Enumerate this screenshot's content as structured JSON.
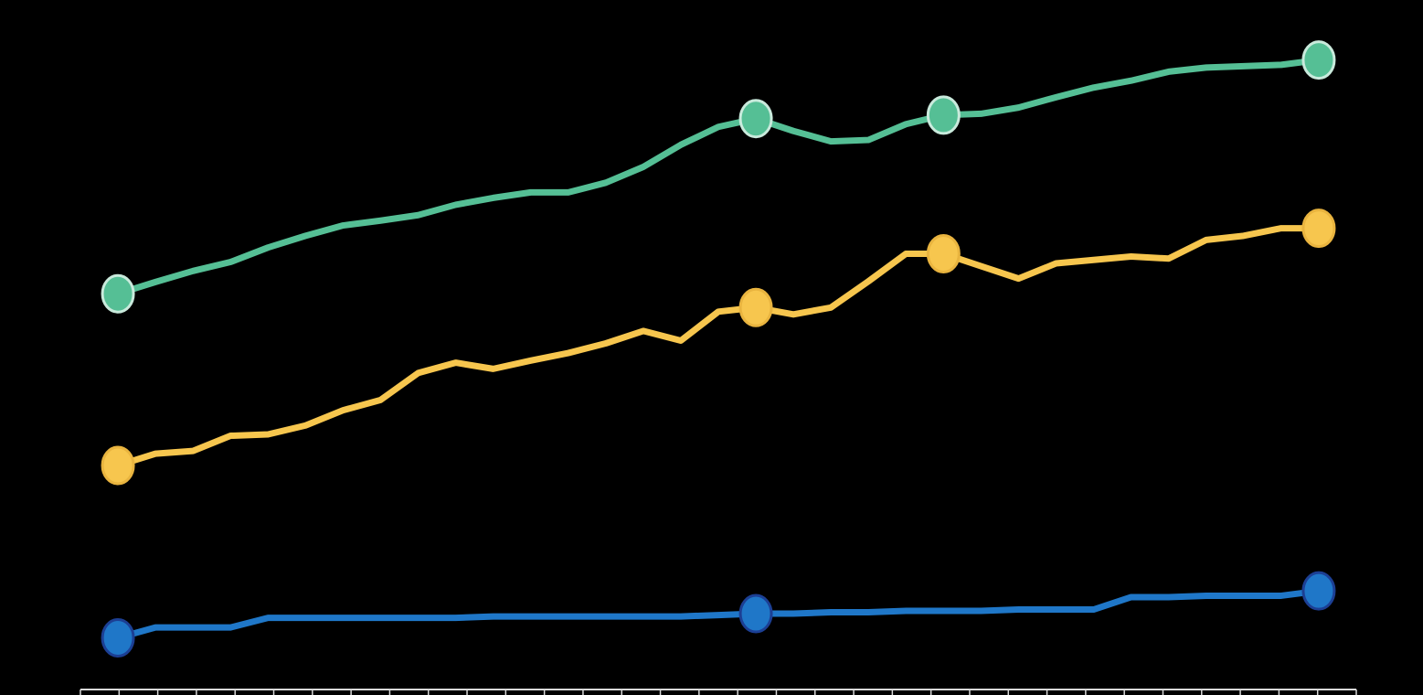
{
  "background": "#000000",
  "chart_data": {
    "type": "line",
    "title": "",
    "xlabel": "",
    "ylabel": "",
    "x": [
      0,
      1,
      2,
      3,
      4,
      5,
      6,
      7,
      8,
      9,
      10,
      11,
      12,
      13,
      14,
      15,
      16,
      17,
      18,
      19,
      20,
      21,
      22,
      23,
      24,
      25,
      26,
      27,
      28,
      29,
      30,
      31,
      32
    ],
    "xlim": [
      -1,
      33
    ],
    "ylim": [
      0,
      100
    ],
    "grid": false,
    "legend": "none",
    "axis_color": "#d9d9d9",
    "series": [
      {
        "color": "#55bf95",
        "marker_fill": "#55bf95",
        "marker_stroke": "#c9eadc",
        "values": [
          57.4,
          59.1,
          60.7,
          62.0,
          64.1,
          65.8,
          67.3,
          68.0,
          68.8,
          70.3,
          71.3,
          72.1,
          72.1,
          73.5,
          75.8,
          79.0,
          81.6,
          82.8,
          81.0,
          79.5,
          79.7,
          82.0,
          83.3,
          83.5,
          84.4,
          85.9,
          87.3,
          88.3,
          89.6,
          90.2,
          90.4,
          90.6,
          91.3
        ],
        "marker_indices": [
          0,
          17,
          22,
          32
        ]
      },
      {
        "color": "#f7c64e",
        "marker_fill": "#f7c64e",
        "marker_stroke": "#e9b43f",
        "values": [
          32.5,
          34.2,
          34.6,
          36.8,
          37.0,
          38.3,
          40.5,
          42.0,
          45.9,
          47.4,
          46.5,
          47.7,
          48.8,
          50.2,
          52.0,
          50.6,
          54.8,
          55.4,
          54.4,
          55.4,
          59.2,
          63.2,
          63.2,
          61.4,
          59.6,
          61.8,
          62.3,
          62.8,
          62.5,
          65.2,
          65.8,
          66.9,
          66.9
        ],
        "marker_indices": [
          0,
          17,
          22,
          32
        ]
      },
      {
        "color": "#1f77c8",
        "marker_fill": "#1f77c8",
        "marker_stroke": "#1c3f94",
        "values": [
          7.5,
          9.0,
          9.0,
          9.0,
          10.4,
          10.4,
          10.4,
          10.4,
          10.4,
          10.4,
          10.6,
          10.6,
          10.6,
          10.6,
          10.6,
          10.6,
          10.8,
          11.0,
          11.0,
          11.2,
          11.2,
          11.4,
          11.4,
          11.4,
          11.6,
          11.6,
          11.6,
          13.4,
          13.4,
          13.6,
          13.6,
          13.6,
          14.3
        ],
        "marker_indices": [
          0,
          17,
          32
        ]
      }
    ]
  }
}
